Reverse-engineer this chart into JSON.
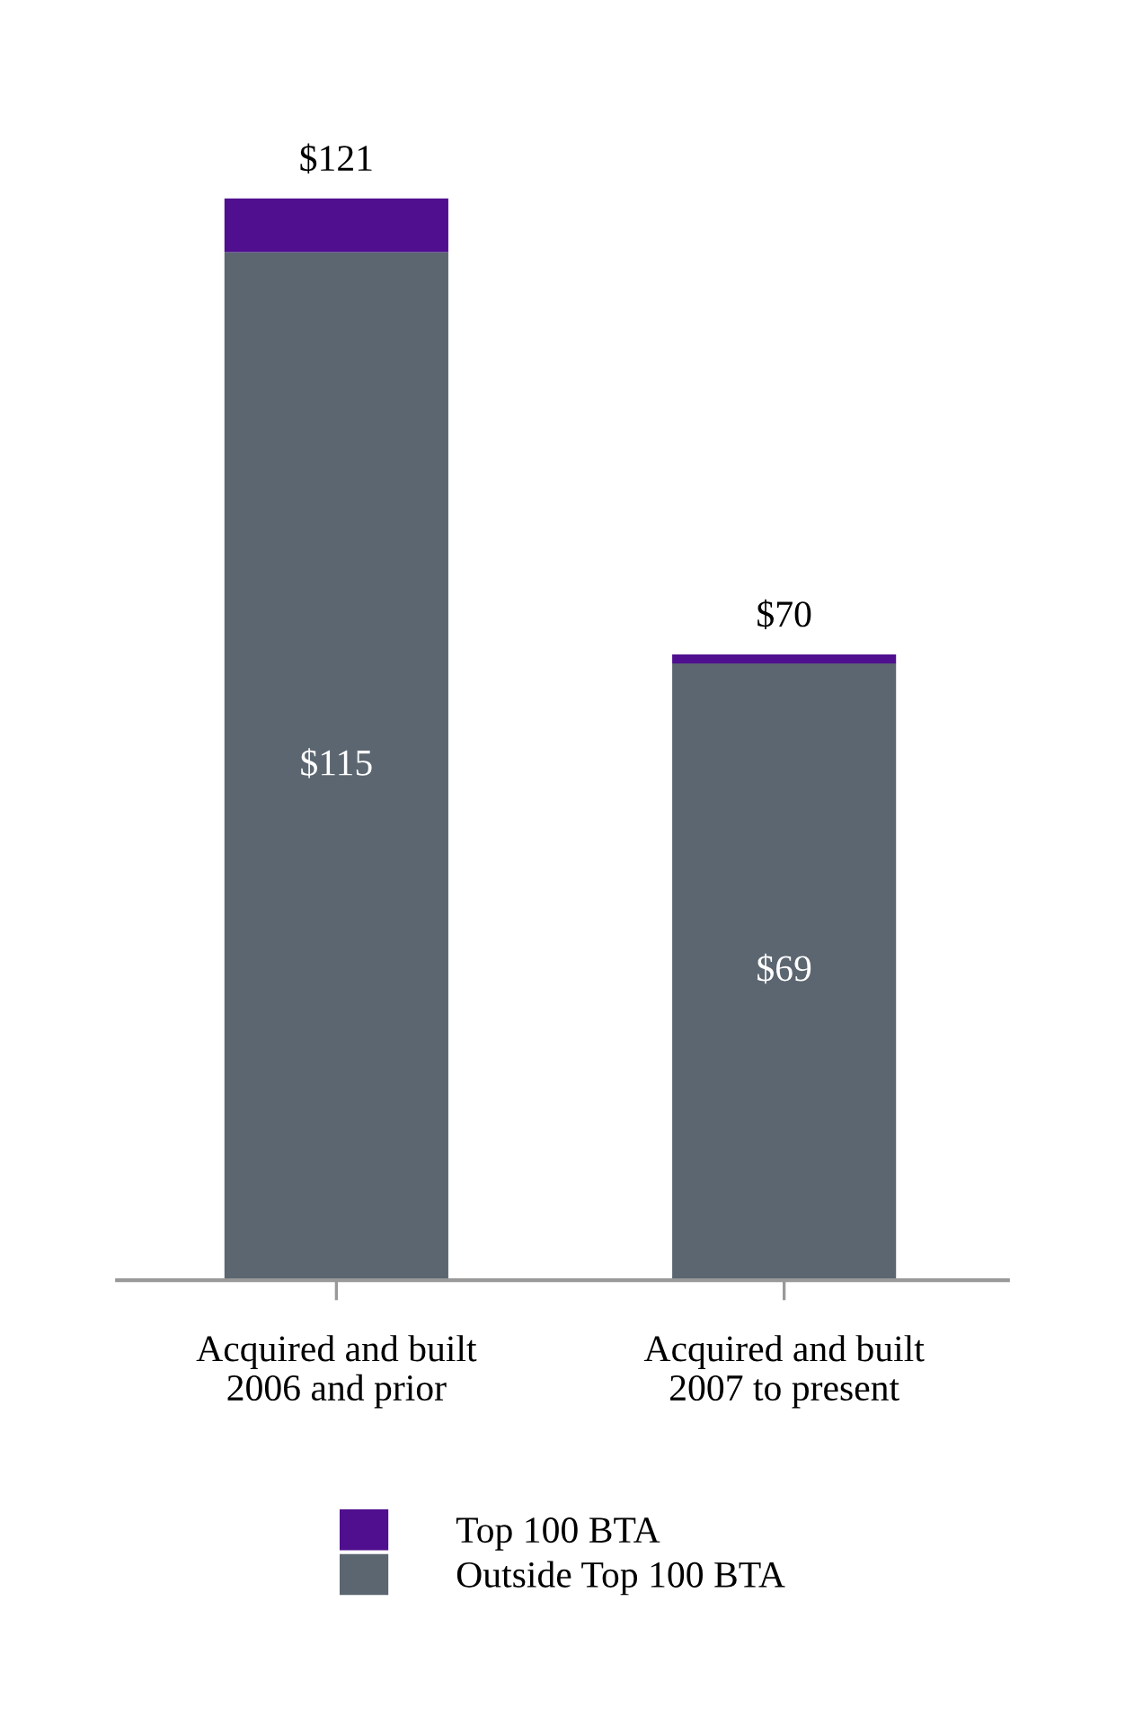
{
  "chart_data": {
    "type": "bar",
    "stacked": true,
    "categories": [
      "Acquired and built\n2006 and prior",
      "Acquired and built\n2007 to present"
    ],
    "series": [
      {
        "name": "Outside Top 100 BTA",
        "color": "#5b6670",
        "values": [
          115,
          69
        ],
        "value_labels": [
          "$115",
          "$69"
        ]
      },
      {
        "name": "Top 100 BTA",
        "color": "#4f0f8f",
        "values": [
          6,
          1
        ]
      }
    ],
    "totals": [
      "$121",
      "$70"
    ],
    "legend": "bottom",
    "grid": false
  }
}
